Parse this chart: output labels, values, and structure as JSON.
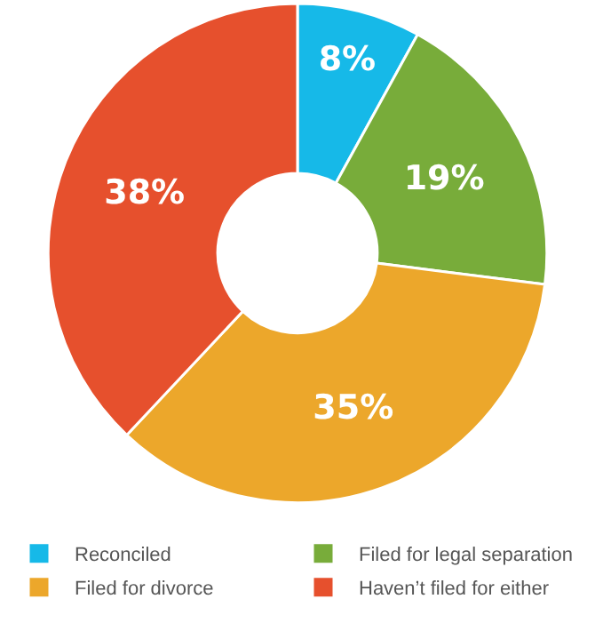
{
  "chart_data": {
    "type": "donut",
    "categories": [
      "Reconciled",
      "Filed for legal separation",
      "Filed for divorce",
      "Haven’t filed for either"
    ],
    "values": [
      8,
      19,
      35,
      38
    ],
    "colors": [
      "#16b9e8",
      "#78ac3a",
      "#eca72b",
      "#e6502d"
    ],
    "value_labels": [
      "8%",
      "19%",
      "35%",
      "38%"
    ],
    "legend": "bottom"
  }
}
